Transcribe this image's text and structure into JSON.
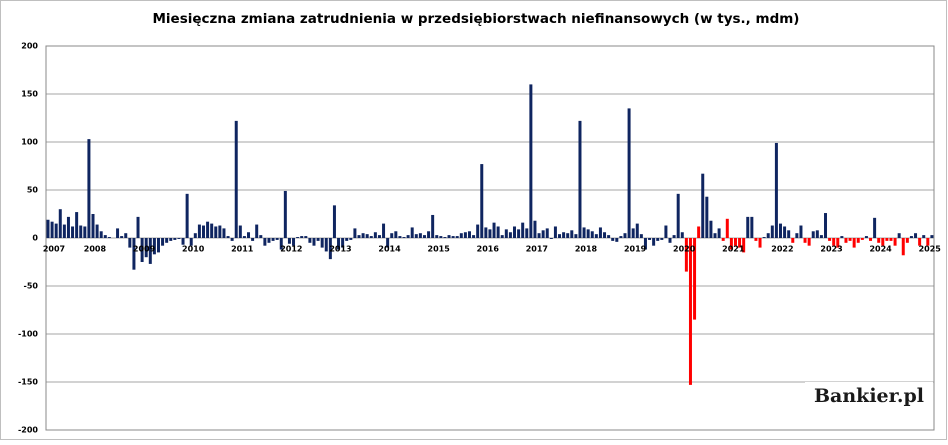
{
  "chart_data": {
    "type": "bar",
    "title": "Miesięczna zmiana zatrudnienia w przedsiębiorstwach niefinansowych (w tys., mdm)",
    "watermark": "Bankier.pl",
    "categories": [
      "2007",
      null,
      null,
      null,
      null,
      null,
      null,
      null,
      null,
      null,
      "2008",
      null,
      null,
      null,
      null,
      null,
      null,
      null,
      null,
      null,
      null,
      null,
      "2009",
      null,
      null,
      null,
      null,
      null,
      null,
      null,
      null,
      null,
      null,
      null,
      "2010",
      null,
      null,
      null,
      null,
      null,
      null,
      null,
      null,
      null,
      null,
      null,
      "2011",
      null,
      null,
      null,
      null,
      null,
      null,
      null,
      null,
      null,
      null,
      null,
      "2012",
      null,
      null,
      null,
      null,
      null,
      null,
      null,
      null,
      null,
      null,
      null,
      "2013",
      null,
      null,
      null,
      null,
      null,
      null,
      null,
      null,
      null,
      null,
      null,
      "2014",
      null,
      null,
      null,
      null,
      null,
      null,
      null,
      null,
      null,
      null,
      null,
      "2015",
      null,
      null,
      null,
      null,
      null,
      null,
      null,
      null,
      null,
      null,
      null,
      "2016",
      null,
      null,
      null,
      null,
      null,
      null,
      null,
      null,
      null,
      null,
      null,
      "2017",
      null,
      null,
      null,
      null,
      null,
      null,
      null,
      null,
      null,
      null,
      null,
      "2018",
      null,
      null,
      null,
      null,
      null,
      null,
      null,
      null,
      null,
      null,
      null,
      "2019",
      null,
      null,
      null,
      null,
      null,
      null,
      null,
      null,
      null,
      null,
      null,
      "2020",
      null,
      null,
      null,
      null,
      null,
      null,
      null,
      null,
      null,
      null,
      null,
      "2021",
      null,
      null,
      null,
      null,
      null,
      null,
      null,
      null,
      null,
      null,
      null,
      "2022",
      null,
      null,
      null,
      null,
      null,
      null,
      null,
      null,
      null,
      null,
      null,
      "2023",
      null,
      null,
      null,
      null,
      null,
      null,
      null,
      null,
      null,
      null,
      null,
      "2024",
      null,
      null,
      null,
      null,
      null,
      null,
      null,
      null,
      null,
      null,
      null,
      "2025",
      null,
      null
    ],
    "values": [
      19,
      17,
      15,
      30,
      14,
      22,
      12,
      27,
      13,
      12,
      103,
      25,
      14,
      7,
      3,
      1,
      0,
      10,
      2,
      5,
      -10,
      -33,
      22,
      -25,
      -20,
      -27,
      -17,
      -15,
      -8,
      -5,
      -3,
      -2,
      -1,
      -7,
      46,
      -8,
      5,
      14,
      13,
      17,
      15,
      12,
      13,
      10,
      2,
      -3,
      122,
      13,
      2,
      6,
      -3,
      14,
      3,
      -8,
      -5,
      -3,
      -2,
      -12,
      49,
      -6,
      -8,
      1,
      2,
      2,
      -5,
      -8,
      -3,
      -10,
      -14,
      -22,
      34,
      -12,
      -10,
      -3,
      -2,
      10,
      3,
      5,
      4,
      2,
      6,
      3,
      15,
      -10,
      5,
      7,
      2,
      1,
      3,
      11,
      4,
      5,
      3,
      7,
      24,
      3,
      2,
      1,
      3,
      2,
      2,
      5,
      6,
      7,
      3,
      14,
      77,
      11,
      9,
      16,
      12,
      3,
      9,
      6,
      12,
      9,
      16,
      10,
      160,
      18,
      5,
      8,
      10,
      -1,
      12,
      4,
      6,
      5,
      8,
      4,
      122,
      11,
      9,
      7,
      4,
      11,
      6,
      3,
      -3,
      -4,
      2,
      5,
      135,
      10,
      15,
      4,
      -12,
      -2,
      -8,
      -3,
      -2,
      13,
      -5,
      3,
      46,
      6,
      -35,
      -153,
      -85,
      12,
      67,
      43,
      18,
      5,
      10,
      -3,
      20,
      -12,
      -8,
      -10,
      -15,
      22,
      22,
      -3,
      -10,
      1,
      5,
      13,
      99,
      15,
      12,
      8,
      -5,
      5,
      13,
      -5,
      -8,
      7,
      8,
      3,
      26,
      -3,
      -8,
      -10,
      2,
      -5,
      -3,
      -10,
      -5,
      -2,
      2,
      -3,
      21,
      -5,
      -8,
      -3,
      -3,
      -8,
      5,
      -18,
      -5,
      2,
      5,
      -8,
      3,
      -8,
      3
    ],
    "colors": [
      "#0f2560",
      "#0f2560",
      "#0f2560",
      "#0f2560",
      "#0f2560",
      "#0f2560",
      "#0f2560",
      "#0f2560",
      "#0f2560",
      "#0f2560",
      "#0f2560",
      "#0f2560",
      "#0f2560",
      "#0f2560",
      "#0f2560",
      "#0f2560",
      "#0f2560",
      "#0f2560",
      "#0f2560",
      "#0f2560",
      "#0f2560",
      "#0f2560",
      "#0f2560",
      "#0f2560",
      "#0f2560",
      "#0f2560",
      "#0f2560",
      "#0f2560",
      "#0f2560",
      "#0f2560",
      "#0f2560",
      "#0f2560",
      "#0f2560",
      "#0f2560",
      "#0f2560",
      "#0f2560",
      "#0f2560",
      "#0f2560",
      "#0f2560",
      "#0f2560",
      "#0f2560",
      "#0f2560",
      "#0f2560",
      "#0f2560",
      "#0f2560",
      "#0f2560",
      "#0f2560",
      "#0f2560",
      "#0f2560",
      "#0f2560",
      "#0f2560",
      "#0f2560",
      "#0f2560",
      "#0f2560",
      "#0f2560",
      "#0f2560",
      "#0f2560",
      "#0f2560",
      "#0f2560",
      "#0f2560",
      "#0f2560",
      "#0f2560",
      "#0f2560",
      "#0f2560",
      "#0f2560",
      "#0f2560",
      "#0f2560",
      "#0f2560",
      "#0f2560",
      "#0f2560",
      "#0f2560",
      "#0f2560",
      "#0f2560",
      "#0f2560",
      "#0f2560",
      "#0f2560",
      "#0f2560",
      "#0f2560",
      "#0f2560",
      "#0f2560",
      "#0f2560",
      "#0f2560",
      "#0f2560",
      "#0f2560",
      "#0f2560",
      "#0f2560",
      "#0f2560",
      "#0f2560",
      "#0f2560",
      "#0f2560",
      "#0f2560",
      "#0f2560",
      "#0f2560",
      "#0f2560",
      "#0f2560",
      "#0f2560",
      "#0f2560",
      "#0f2560",
      "#0f2560",
      "#0f2560",
      "#0f2560",
      "#0f2560",
      "#0f2560",
      "#0f2560",
      "#0f2560",
      "#0f2560",
      "#0f2560",
      "#0f2560",
      "#0f2560",
      "#0f2560",
      "#0f2560",
      "#0f2560",
      "#0f2560",
      "#0f2560",
      "#0f2560",
      "#0f2560",
      "#0f2560",
      "#0f2560",
      "#0f2560",
      "#0f2560",
      "#0f2560",
      "#0f2560",
      "#0f2560",
      "#0f2560",
      "#0f2560",
      "#0f2560",
      "#0f2560",
      "#0f2560",
      "#0f2560",
      "#0f2560",
      "#0f2560",
      "#0f2560",
      "#0f2560",
      "#0f2560",
      "#0f2560",
      "#0f2560",
      "#0f2560",
      "#0f2560",
      "#0f2560",
      "#0f2560",
      "#0f2560",
      "#0f2560",
      "#0f2560",
      "#0f2560",
      "#0f2560",
      "#0f2560",
      "#0f2560",
      "#0f2560",
      "#0f2560",
      "#0f2560",
      "#0f2560",
      "#0f2560",
      "#0f2560",
      "#0f2560",
      "#0f2560",
      "#0f2560",
      "#ff0000",
      "#ff0000",
      "#ff0000",
      "#ff0000",
      "#0f2560",
      "#0f2560",
      "#0f2560",
      "#0f2560",
      "#0f2560",
      "#ff0000",
      "#ff0000",
      "#ff0000",
      "#ff0000",
      "#ff0000",
      "#ff0000",
      "#0f2560",
      "#0f2560",
      "#ff0000",
      "#ff0000",
      "#0f2560",
      "#0f2560",
      "#0f2560",
      "#0f2560",
      "#0f2560",
      "#0f2560",
      "#0f2560",
      "#ff0000",
      "#0f2560",
      "#0f2560",
      "#ff0000",
      "#ff0000",
      "#0f2560",
      "#0f2560",
      "#0f2560",
      "#0f2560",
      "#ff0000",
      "#ff0000",
      "#ff0000",
      "#0f2560",
      "#ff0000",
      "#ff0000",
      "#ff0000",
      "#ff0000",
      "#ff0000",
      "#0f2560",
      "#ff0000",
      "#0f2560",
      "#ff0000",
      "#ff0000",
      "#ff0000",
      "#ff0000",
      "#ff0000",
      "#0f2560",
      "#ff0000",
      "#ff0000",
      "#0f2560",
      "#0f2560",
      "#ff0000",
      "#0f2560",
      "#ff0000",
      "#0f2560"
    ],
    "ylim": [
      -200,
      200
    ],
    "yticks": [
      -200,
      -150,
      -100,
      -50,
      0,
      50,
      100,
      150,
      200
    ],
    "grid": true
  }
}
